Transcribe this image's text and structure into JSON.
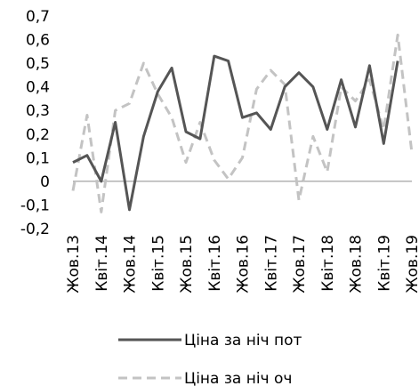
{
  "chart_data": {
    "type": "line",
    "title": "",
    "xlabel": "",
    "ylabel": "",
    "ylim": [
      -0.2,
      0.7
    ],
    "yticks": [
      {
        "value": -0.2,
        "label": "-0,2"
      },
      {
        "value": -0.1,
        "label": "-0,1"
      },
      {
        "value": 0,
        "label": "0"
      },
      {
        "value": 0.1,
        "label": "0,1"
      },
      {
        "value": 0.2,
        "label": "0,2"
      },
      {
        "value": 0.3,
        "label": "0,3"
      },
      {
        "value": 0.4,
        "label": "0,4"
      },
      {
        "value": 0.5,
        "label": "0,5"
      },
      {
        "value": 0.6,
        "label": "0,6"
      },
      {
        "value": 0.7,
        "label": "0,7"
      }
    ],
    "grid": false,
    "legend_position": "bottom",
    "x_tick_labels": [
      "Жов.13",
      "Квіт.14",
      "Жов.14",
      "Квіт.15",
      "Жов.15",
      "Квіт.16",
      "Жов.16",
      "Квіт.17",
      "Жов.17",
      "Квіт.18",
      "Жов.18",
      "Квіт.19",
      "Жов.19"
    ],
    "x_tick_every": 2,
    "categories": [
      "Жов.13",
      "Січ.14",
      "Квіт.14",
      "Лип.14",
      "Жов.14",
      "Січ.15",
      "Квіт.15",
      "Лип.15",
      "Жов.15",
      "Січ.16",
      "Квіт.16",
      "Лип.16",
      "Жов.16",
      "Січ.17",
      "Квіт.17",
      "Лип.17",
      "Жов.17",
      "Січ.18",
      "Квіт.18",
      "Лип.18",
      "Жов.18",
      "Січ.19",
      "Квіт.19",
      "Лип.19",
      "Жов.19"
    ],
    "series": [
      {
        "name": "Ціна за ніч пот",
        "color": "#555555",
        "dash": "solid",
        "values": [
          0.08,
          0.11,
          0.0,
          0.25,
          -0.12,
          0.19,
          0.38,
          0.48,
          0.21,
          0.18,
          0.53,
          0.51,
          0.27,
          0.29,
          0.22,
          0.4,
          0.46,
          0.4,
          0.22,
          0.43,
          0.23,
          0.49,
          0.16,
          0.51,
          null
        ]
      },
      {
        "name": "Ціна за ніч оч",
        "color": "#c3c3c3",
        "dash": "dashed",
        "values": [
          -0.04,
          0.28,
          -0.13,
          0.3,
          0.33,
          0.5,
          0.37,
          0.27,
          0.08,
          0.25,
          0.09,
          0.01,
          0.1,
          0.39,
          0.47,
          0.41,
          -0.08,
          0.19,
          0.04,
          0.4,
          0.34,
          0.43,
          0.22,
          0.62,
          0.12
        ]
      }
    ]
  }
}
